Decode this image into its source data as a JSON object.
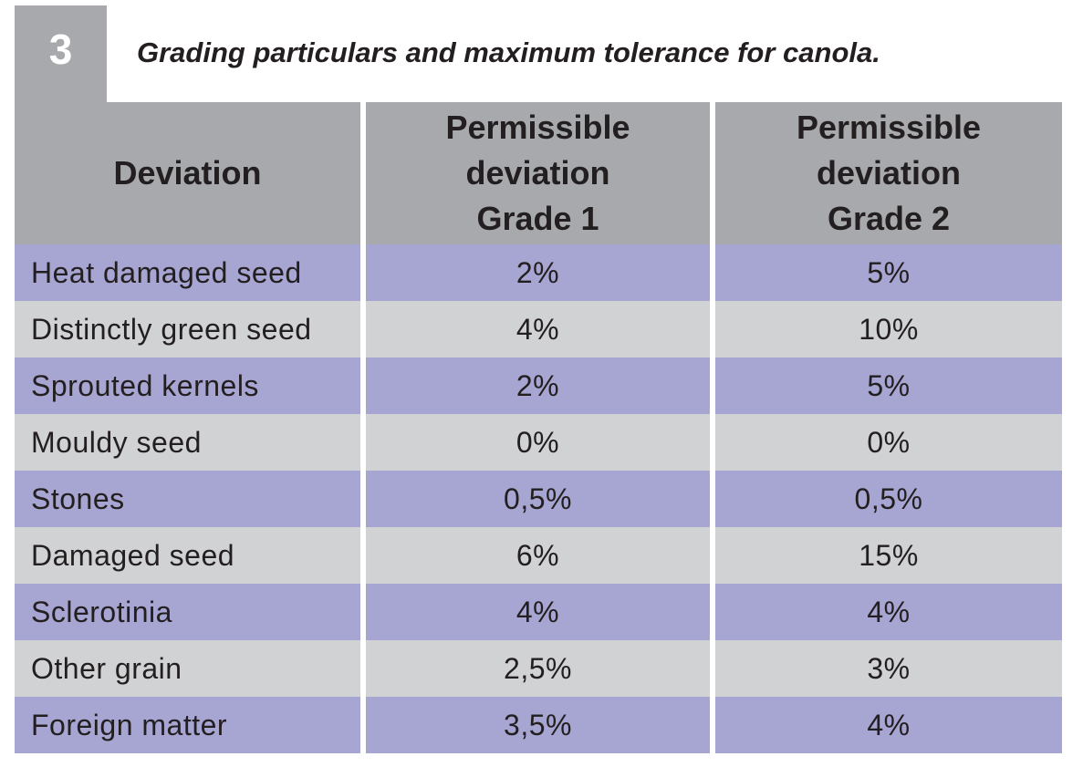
{
  "table_number": "3",
  "caption": "Grading particulars and maximum tolerance for canola.",
  "header": {
    "col1": "Deviation",
    "col2": [
      "Permissible",
      "deviation",
      "Grade 1"
    ],
    "col3": [
      "Permissible",
      "deviation",
      "Grade 2"
    ]
  },
  "rows": [
    {
      "deviation": "Heat damaged seed",
      "grade1": "2%",
      "grade2": "5%"
    },
    {
      "deviation": "Distinctly green seed",
      "grade1": "4%",
      "grade2": "10%"
    },
    {
      "deviation": "Sprouted kernels",
      "grade1": "2%",
      "grade2": "5%"
    },
    {
      "deviation": "Mouldy seed",
      "grade1": "0%",
      "grade2": "0%"
    },
    {
      "deviation": "Stones",
      "grade1": "0,5%",
      "grade2": "0,5%"
    },
    {
      "deviation": "Damaged seed",
      "grade1": "6%",
      "grade2": "15%"
    },
    {
      "deviation": "Sclerotinia",
      "grade1": "4%",
      "grade2": "4%"
    },
    {
      "deviation": "Other grain",
      "grade1": "2,5%",
      "grade2": "3%"
    },
    {
      "deviation": "Foreign matter",
      "grade1": "3,5%",
      "grade2": "4%"
    }
  ],
  "colors": {
    "header_bg": "#a7a9ac",
    "row_purple": "#a7a5d2",
    "row_grey": "#d1d2d4",
    "text": "#231f20"
  }
}
